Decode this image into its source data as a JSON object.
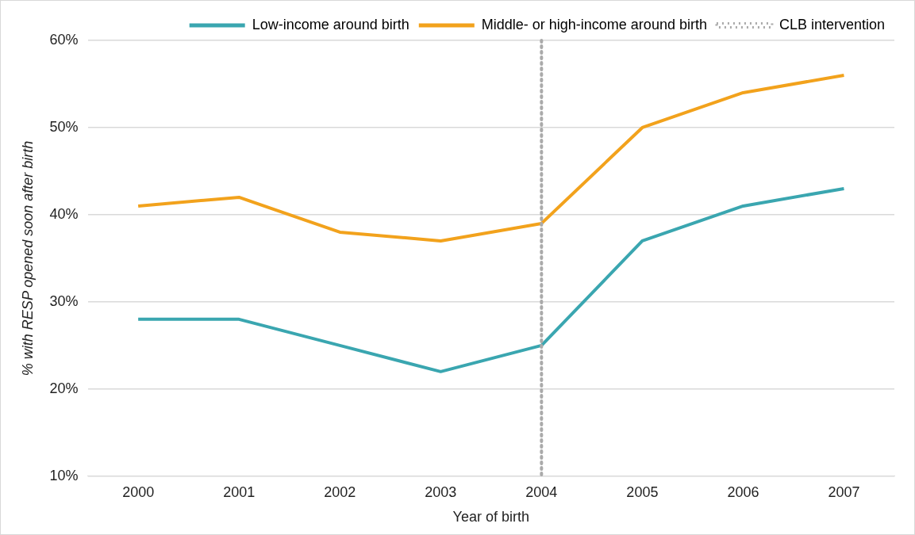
{
  "chart_data": {
    "type": "line",
    "xlabel": "Year of birth",
    "ylabel": "% with RESP opened soon after birth",
    "categories": [
      "2000",
      "2001",
      "2002",
      "2003",
      "2004",
      "2005",
      "2006",
      "2007"
    ],
    "series": [
      {
        "name": "Low-income around birth",
        "color": "#3aa6b0",
        "values": [
          28,
          28,
          25,
          22,
          25,
          37,
          41,
          43
        ]
      },
      {
        "name": "Middle- or high-income around birth",
        "color": "#f2a21c",
        "values": [
          41,
          42,
          38,
          37,
          39,
          50,
          54,
          56
        ]
      }
    ],
    "ylim": [
      10,
      60
    ],
    "yticks": [
      {
        "value": 10,
        "label": "10%"
      },
      {
        "value": 20,
        "label": "20%"
      },
      {
        "value": 30,
        "label": "30%"
      },
      {
        "value": 40,
        "label": "40%"
      },
      {
        "value": 50,
        "label": "50%"
      },
      {
        "value": 60,
        "label": "60%"
      }
    ],
    "ref_lines": [
      {
        "axis": "x",
        "value": "2004",
        "label": "CLB intervention",
        "color": "#aaaaaa",
        "line_style": "dotted"
      }
    ],
    "grid": "y",
    "legend": "top right",
    "marker": "none",
    "line_style": "solid"
  }
}
